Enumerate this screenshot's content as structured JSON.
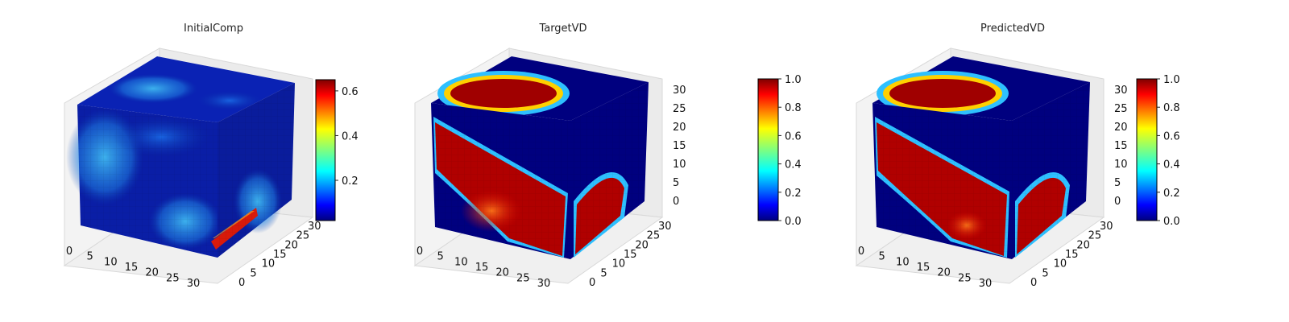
{
  "chart_data": [
    {
      "type": "3d-voxel",
      "title": "InitialComp",
      "grid_size": [
        32,
        32,
        32
      ],
      "x_ticks": [
        "0",
        "5",
        "10",
        "15",
        "20",
        "25",
        "30"
      ],
      "y_ticks": [
        "0",
        "5",
        "10",
        "15",
        "20",
        "25",
        "30"
      ],
      "z_ticks": [],
      "colormap": "jet",
      "colorbar": {
        "range": [
          0.02,
          0.65
        ],
        "ticks": [
          "0.2",
          "0.4",
          "0.6"
        ]
      }
    },
    {
      "type": "3d-voxel",
      "title": "TargetVD",
      "grid_size": [
        32,
        32,
        32
      ],
      "x_ticks": [
        "0",
        "5",
        "10",
        "15",
        "20",
        "25",
        "30"
      ],
      "y_ticks": [
        "0",
        "5",
        "10",
        "15",
        "20",
        "25",
        "30"
      ],
      "z_ticks": [
        "0",
        "5",
        "10",
        "15",
        "20",
        "25",
        "30"
      ],
      "colormap": "jet",
      "colorbar": {
        "range": [
          0.0,
          1.0
        ],
        "ticks": [
          "0.0",
          "0.2",
          "0.4",
          "0.6",
          "0.8",
          "1.0"
        ]
      }
    },
    {
      "type": "3d-voxel",
      "title": "PredictedVD",
      "grid_size": [
        32,
        32,
        32
      ],
      "x_ticks": [
        "0",
        "5",
        "10",
        "15",
        "20",
        "25",
        "30"
      ],
      "y_ticks": [
        "0",
        "5",
        "10",
        "15",
        "20",
        "25",
        "30"
      ],
      "z_ticks": [
        "0",
        "5",
        "10",
        "15",
        "20",
        "25",
        "30"
      ],
      "colormap": "jet",
      "colorbar": {
        "range": [
          0.0,
          1.0
        ],
        "ticks": [
          "0.0",
          "0.2",
          "0.4",
          "0.6",
          "0.8",
          "1.0"
        ]
      }
    }
  ]
}
